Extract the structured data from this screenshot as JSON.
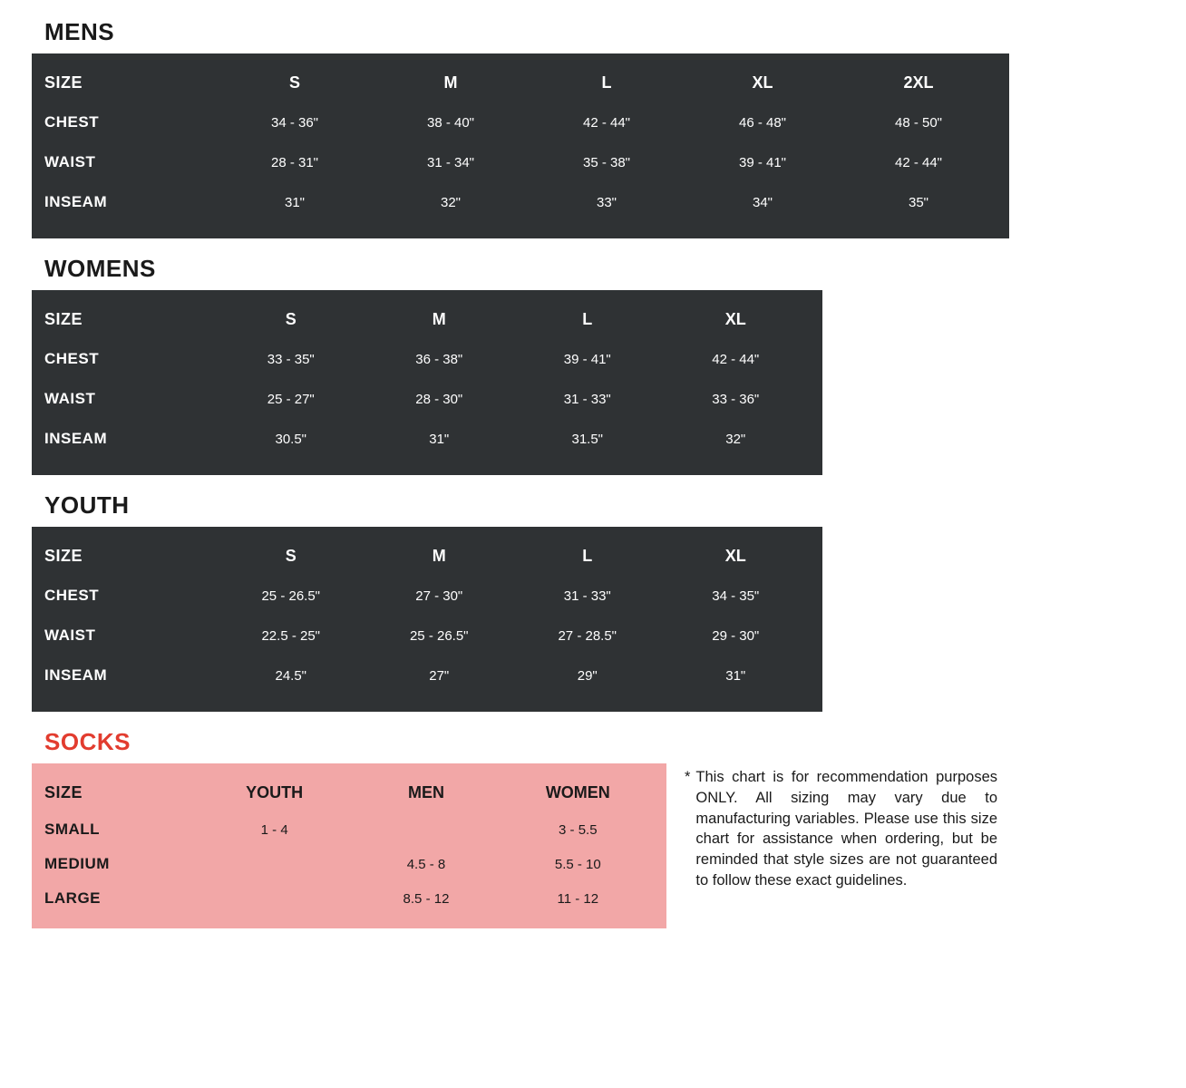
{
  "colors": {
    "dark_table_bg": "#2f3234",
    "dark_table_text": "#ffffff",
    "socks_bg": "#f2a7a7",
    "socks_text": "#1a1a1a",
    "title_color": "#1a1a1a",
    "accent_title": "#e23c2f",
    "page_bg": "#ffffff"
  },
  "typography": {
    "title_fontsize": 26,
    "header_fontsize": 18,
    "label_fontsize": 17,
    "cell_fontsize": 15,
    "footnote_fontsize": 16.5
  },
  "mens": {
    "title": "MENS",
    "size_label": "SIZE",
    "columns": [
      "S",
      "M",
      "L",
      "XL",
      "2XL"
    ],
    "rows": [
      {
        "label": "CHEST",
        "values": [
          "34 - 36\"",
          "38 - 40\"",
          "42 - 44\"",
          "46 - 48\"",
          "48 - 50\""
        ]
      },
      {
        "label": "WAIST",
        "values": [
          "28 - 31\"",
          "31 - 34\"",
          "35 - 38\"",
          "39 - 41\"",
          "42 - 44\""
        ]
      },
      {
        "label": "INSEAM",
        "values": [
          "31\"",
          "32\"",
          "33\"",
          "34\"",
          "35\""
        ]
      }
    ]
  },
  "womens": {
    "title": "WOMENS",
    "size_label": "SIZE",
    "columns": [
      "S",
      "M",
      "L",
      "XL"
    ],
    "rows": [
      {
        "label": "CHEST",
        "values": [
          "33 - 35\"",
          "36 - 38\"",
          "39 - 41\"",
          "42 - 44\""
        ]
      },
      {
        "label": "WAIST",
        "values": [
          "25 - 27\"",
          "28 - 30\"",
          "31 - 33\"",
          "33 - 36\""
        ]
      },
      {
        "label": "INSEAM",
        "values": [
          "30.5\"",
          "31\"",
          "31.5\"",
          "32\""
        ]
      }
    ]
  },
  "youth": {
    "title": "YOUTH",
    "size_label": "SIZE",
    "columns": [
      "S",
      "M",
      "L",
      "XL"
    ],
    "rows": [
      {
        "label": "CHEST",
        "values": [
          "25 - 26.5\"",
          "27 - 30\"",
          "31 - 33\"",
          "34 - 35\""
        ]
      },
      {
        "label": "WAIST",
        "values": [
          "22.5 - 25\"",
          "25 - 26.5\"",
          "27 - 28.5\"",
          "29 - 30\""
        ]
      },
      {
        "label": "INSEAM",
        "values": [
          "24.5\"",
          "27\"",
          "29\"",
          "31\""
        ]
      }
    ]
  },
  "socks": {
    "title": "SOCKS",
    "size_label": "SIZE",
    "columns": [
      "YOUTH",
      "MEN",
      "WOMEN"
    ],
    "rows": [
      {
        "label": "SMALL",
        "values": [
          "1 - 4",
          "",
          "3 - 5.5"
        ]
      },
      {
        "label": "MEDIUM",
        "values": [
          "",
          "4.5 - 8",
          "5.5 - 10"
        ]
      },
      {
        "label": "LARGE",
        "values": [
          "",
          "8.5 - 12",
          "11 - 12"
        ]
      }
    ]
  },
  "footnote": {
    "marker": "*",
    "text": "This chart is for recommendation purposes ONLY. All sizing may vary due to manufacturing variables. Please use this size chart for assistance when ordering, but be reminded that style sizes are not guaranteed to follow these exact guidelines."
  }
}
